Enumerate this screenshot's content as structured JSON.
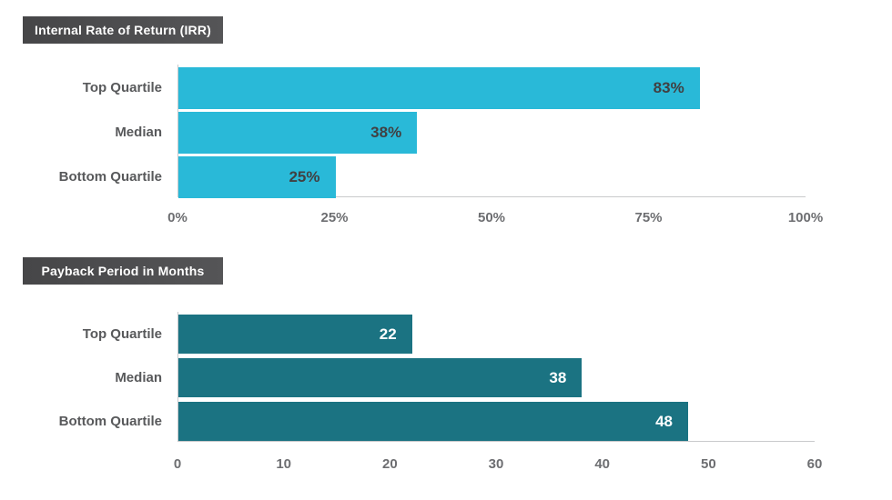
{
  "chart_data": [
    {
      "type": "bar",
      "orientation": "horizontal",
      "title": "Internal Rate of Return (IRR)",
      "categories": [
        "Top Quartile",
        "Median",
        "Bottom Quartile"
      ],
      "values": [
        83,
        38,
        25
      ],
      "value_labels": [
        "83%",
        "38%",
        "25%"
      ],
      "xlim": [
        0,
        100
      ],
      "xticks": [
        "0%",
        "25%",
        "50%",
        "75%",
        "100%"
      ],
      "grid": false,
      "legend": false,
      "bar_color": "#29b9d8",
      "value_label_color": "#414042"
    },
    {
      "type": "bar",
      "orientation": "horizontal",
      "title": "Payback Period in Months",
      "categories": [
        "Top Quartile",
        "Median",
        "Bottom Quartile"
      ],
      "values": [
        22,
        38,
        48
      ],
      "value_labels": [
        "22",
        "38",
        "48"
      ],
      "xlim": [
        0,
        60
      ],
      "xticks": [
        "0",
        "10",
        "20",
        "30",
        "40",
        "50",
        "60"
      ],
      "grid": false,
      "legend": false,
      "bar_color": "#1b7382",
      "value_label_color": "#ffffff"
    }
  ],
  "colors": {
    "background": "#ffffff",
    "title_badge_bg": "#4a4a4c",
    "title_text": "#ffffff",
    "category_label": "#58595b",
    "tick_label": "#6d6e71",
    "axis_line": "#c9cacc",
    "irr_bar": "#29b9d8",
    "payback_bar": "#1b7382"
  }
}
